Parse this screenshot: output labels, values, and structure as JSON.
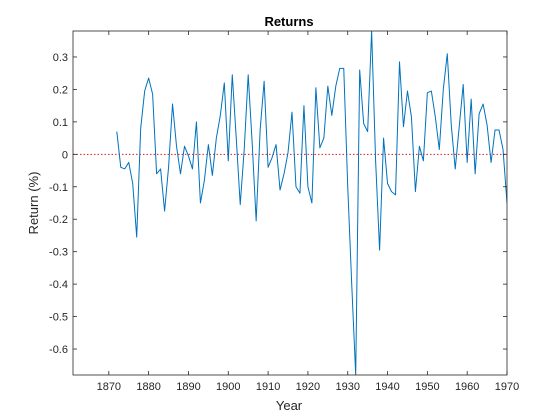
{
  "chart_data": {
    "type": "line",
    "title": "Returns",
    "xlabel": "Year",
    "ylabel": "Return (%)",
    "xlim": [
      1861,
      1970
    ],
    "ylim": [
      -0.68,
      0.38
    ],
    "xticks": [
      1870,
      1880,
      1890,
      1900,
      1910,
      1920,
      1930,
      1940,
      1950,
      1960,
      1970
    ],
    "yticks": [
      0.3,
      0.2,
      0.1,
      0,
      -0.1,
      -0.2,
      -0.3,
      -0.4,
      -0.5,
      -0.6
    ],
    "ytick_labels": [
      "0.3",
      "0.2",
      "0.1",
      "0",
      "-0.1",
      "-0.2",
      "-0.3",
      "-0.4",
      "-0.5",
      "-0.6"
    ],
    "grid": false,
    "series": [
      {
        "color": "#0072bd",
        "x": [
          1872,
          1873,
          1874,
          1875,
          1876,
          1877,
          1878,
          1879,
          1880,
          1881,
          1882,
          1883,
          1884,
          1885,
          1886,
          1887,
          1888,
          1889,
          1890,
          1891,
          1892,
          1893,
          1894,
          1895,
          1896,
          1897,
          1898,
          1899,
          1900,
          1901,
          1902,
          1903,
          1904,
          1905,
          1906,
          1907,
          1908,
          1909,
          1910,
          1911,
          1912,
          1913,
          1914,
          1915,
          1916,
          1917,
          1918,
          1919,
          1920,
          1921,
          1922,
          1923,
          1924,
          1925,
          1926,
          1927,
          1928,
          1929,
          1930,
          1931,
          1932,
          1933,
          1934,
          1935,
          1936,
          1937,
          1938,
          1939,
          1940,
          1941,
          1942,
          1943,
          1944,
          1945,
          1946,
          1947,
          1948,
          1949,
          1950,
          1951,
          1952,
          1953,
          1954,
          1955,
          1956,
          1957,
          1958,
          1959,
          1960,
          1961,
          1962,
          1963,
          1964,
          1965,
          1966,
          1967,
          1968,
          1969,
          1970
        ],
        "values": [
          0.07,
          -0.04,
          -0.045,
          -0.025,
          -0.09,
          -0.255,
          0.08,
          0.195,
          0.235,
          0.185,
          -0.06,
          -0.045,
          -0.175,
          -0.04,
          0.155,
          0.025,
          -0.06,
          0.025,
          -0.005,
          -0.045,
          0.1,
          -0.15,
          -0.08,
          0.03,
          -0.065,
          0.05,
          0.12,
          0.22,
          -0.02,
          0.245,
          0.05,
          -0.155,
          0.015,
          0.245,
          0.035,
          -0.205,
          0.075,
          0.225,
          -0.04,
          -0.01,
          0.03,
          -0.11,
          -0.06,
          0.005,
          0.13,
          -0.1,
          -0.12,
          0.15,
          -0.1,
          -0.15,
          0.205,
          0.02,
          0.05,
          0.21,
          0.12,
          0.21,
          0.265,
          0.265,
          -0.1,
          -0.4,
          -0.68,
          0.26,
          0.095,
          0.07,
          0.38,
          -0.02,
          -0.295,
          0.05,
          -0.09,
          -0.115,
          -0.125,
          0.285,
          0.085,
          0.195,
          0.115,
          -0.115,
          0.025,
          -0.02,
          0.19,
          0.195,
          0.115,
          0.015,
          0.2,
          0.31,
          0.09,
          -0.045,
          0.085,
          0.215,
          -0.025,
          0.17,
          -0.06,
          0.125,
          0.155,
          0.09,
          -0.025,
          0.075,
          0.075,
          0.015,
          -0.15
        ]
      }
    ],
    "reference_line": {
      "y": 0,
      "color": "#e31a1c",
      "style": "dotted"
    }
  }
}
